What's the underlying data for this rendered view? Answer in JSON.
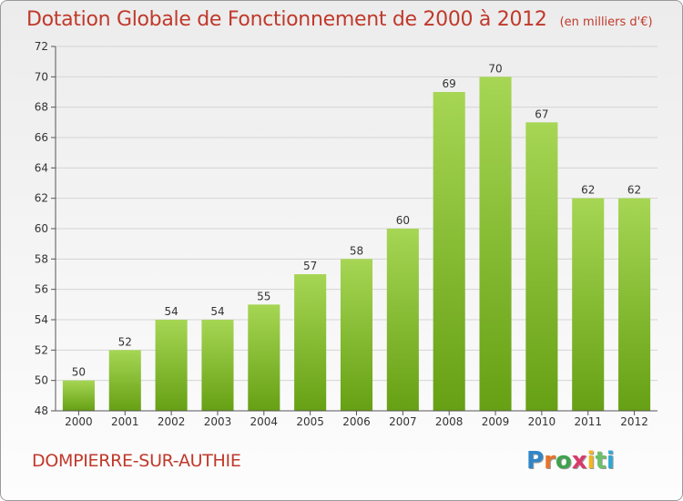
{
  "title": "Dotation Globale de Fonctionnement de 2000 à 2012",
  "unit": "(en milliers d'€)",
  "town": "DOMPIERRE-SUR-AUTHIE",
  "logo": {
    "letters": [
      "P",
      "r",
      "o",
      "x",
      "i",
      "t",
      "i"
    ],
    "colors": [
      "#2f86c8",
      "#e8732a",
      "#3fa34d",
      "#d93a6a",
      "#f2b61e",
      "#6cc06a",
      "#2fa8d4"
    ]
  },
  "colors": {
    "bar_top": "#a6d654",
    "bar_bottom": "#66a014",
    "text_accent": "#c0392b"
  },
  "chart_data": {
    "type": "bar",
    "categories": [
      "2000",
      "2001",
      "2002",
      "2003",
      "2004",
      "2005",
      "2006",
      "2007",
      "2008",
      "2009",
      "2010",
      "2011",
      "2012"
    ],
    "values": [
      50,
      52,
      54,
      54,
      55,
      57,
      58,
      60,
      69,
      70,
      67,
      62,
      62
    ],
    "data_labels": [
      "50",
      "52",
      "54",
      "54",
      "55",
      "57",
      "58",
      "60",
      "69",
      "70",
      "67",
      "62",
      "62"
    ],
    "yticks": [
      48,
      50,
      52,
      54,
      56,
      58,
      60,
      62,
      64,
      66,
      68,
      70,
      72
    ],
    "ylim": [
      48,
      72
    ],
    "grid": true
  }
}
